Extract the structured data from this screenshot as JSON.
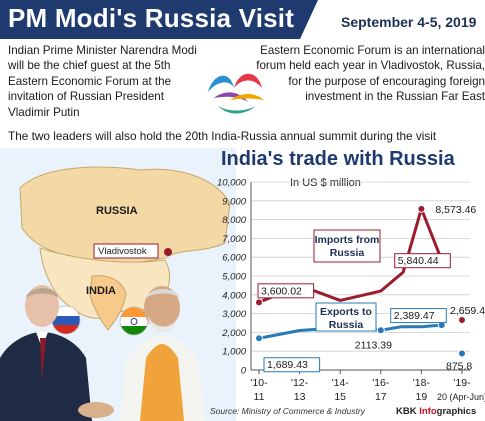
{
  "header": {
    "title": "PM Modi's Russia Visit",
    "date": "September 4-5, 2019"
  },
  "intro_text": "Indian Prime Minister Narendra Modi will be the chief guest at the 5th Eastern Economic Forum at the invitation of Russian President Vladimir Putin",
  "forum_text": "Eastern Economic Forum is an international forum held each year in Vladivostok, Russia, for the purpose of encouraging foreign investment in the Russian Far East",
  "summit_text": "The two leaders will also hold the 20th India-Russia annual summit during the visit",
  "map": {
    "labels": {
      "russia": "RUSSIA",
      "vladivostok": "Vladivostok",
      "india": "INDIA"
    }
  },
  "chart_data": {
    "type": "line",
    "title": "India's trade with Russia",
    "ylabel": "In US $ million",
    "ylim": [
      0,
      10000
    ],
    "yticks": [
      "10,000",
      "9,000",
      "8,000",
      "7,000",
      "6,000",
      "5,000",
      "4,000",
      "3,000",
      "2,000",
      "1,000",
      "0"
    ],
    "categories": [
      "'10-11",
      "'12-13",
      "'14-15",
      "'16-17",
      "'18-19",
      "'19-20 (Apr-Jun)"
    ],
    "series": [
      {
        "name": "Imports from Russia",
        "color": "#9b1c2e",
        "x": [
          0,
          1,
          2,
          3,
          3.55,
          4,
          4.5,
          5
        ],
        "values": [
          3600.02,
          4500,
          3700,
          4200,
          5200,
          8573.46,
          5840.44,
          2659.4
        ]
      },
      {
        "name": "Exports to Russia",
        "color": "#2a7ab8",
        "x": [
          0,
          1,
          2,
          3,
          3.5,
          4,
          4.5,
          5
        ],
        "values": [
          1689.43,
          2100,
          2250,
          2113.39,
          2300,
          2300,
          2389.47,
          875.8
        ]
      }
    ],
    "data_labels": [
      "3,600.02",
      "8,573.46",
      "5,840.44",
      "2,659.4",
      "1,689.43",
      "2113.39",
      "2,389.47",
      "875.8"
    ]
  },
  "footer": {
    "source": "Source: Ministry of Commerce & Industry",
    "credit_prefix": "KBK ",
    "credit_highlight": "Info",
    "credit_suffix": "graphics"
  },
  "colors": {
    "navy": "#1e3a6e",
    "imports": "#9b1c2e",
    "exports": "#2a7ab8",
    "land": "#f2d9a6"
  }
}
